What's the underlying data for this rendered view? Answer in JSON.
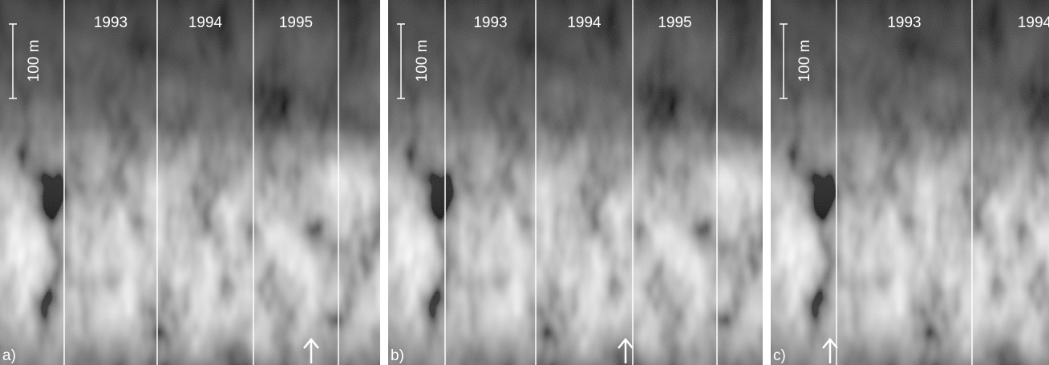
{
  "panels": [
    {
      "label": "a)",
      "scale": "100 m",
      "years": [
        "1993",
        "1994",
        "1995"
      ]
    },
    {
      "label": "b)",
      "scale": "100 m",
      "years": [
        "1993",
        "1994",
        "1995"
      ]
    },
    {
      "label": "c)",
      "scale": "100 m",
      "years": [
        "1993",
        "1994"
      ]
    }
  ]
}
